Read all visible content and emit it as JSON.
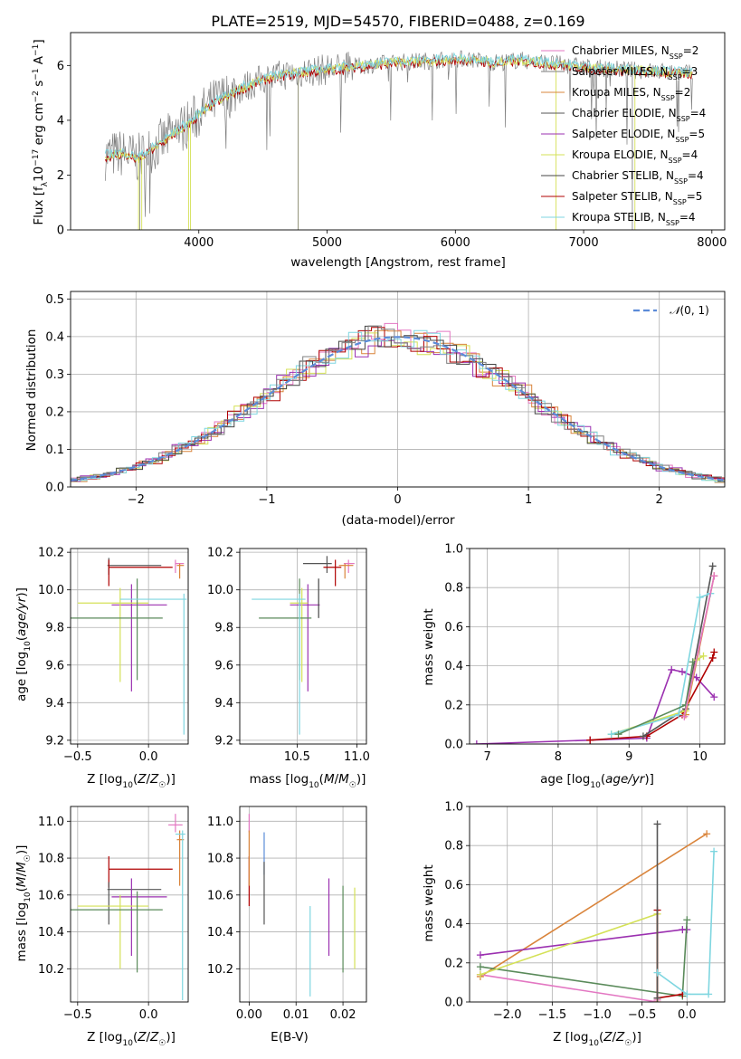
{
  "colors": {
    "Chabrier MILES": "#e377c2",
    "Salpeter MILES": "#7f7f7f",
    "Kroupa MILES": "#d9843b",
    "Chabrier ELODIE": "#555555",
    "Salpeter ELODIE": "#9b30b0",
    "Kroupa ELODIE": "#d4e157",
    "Chabrier STELIB": "#444444",
    "Salpeter STELIB": "#b00000",
    "Kroupa STELIB": "#7fd6e0",
    "green": "#5a8a5a",
    "blue": "#5b8bd8"
  },
  "chart_data": [
    {
      "id": "spectrum",
      "type": "line",
      "title": "PLATE=2519, MJD=54570, FIBERID=0488, z=0.169",
      "xlabel": "wavelength [Angstrom, rest frame]",
      "ylabel": "Flux [f_λ 10^-17 erg cm^-2 s^-1 A^-1]",
      "xlim": [
        3000,
        8100
      ],
      "ylim": [
        0,
        7.2
      ],
      "xticks": [
        4000,
        5000,
        6000,
        7000,
        8000
      ],
      "yticks": [
        0,
        2,
        4,
        6
      ],
      "legend": [
        {
          "label": "Chabrier MILES, N_SSP=2"
        },
        {
          "label": "Salpeter MILES, N_SSP=3"
        },
        {
          "label": "Kroupa MILES, N_SSP=2"
        },
        {
          "label": "Chabrier ELODIE, N_SSP=4"
        },
        {
          "label": "Salpeter ELODIE, N_SSP=5"
        },
        {
          "label": "Kroupa ELODIE, N_SSP=4"
        },
        {
          "label": "Chabrier STELIB, N_SSP=4"
        },
        {
          "label": "Salpeter STELIB, N_SSP=5"
        },
        {
          "label": "Kroupa STELIB, N_SSP=4"
        }
      ],
      "model_curve": {
        "x": [
          3270,
          3400,
          3520,
          3650,
          3800,
          3950,
          4100,
          4300,
          4500,
          4700,
          4900,
          5100,
          5300,
          5500,
          5700,
          5900,
          6100,
          6300,
          6500,
          6700,
          6900,
          7100,
          7300,
          7500,
          7700,
          7850
        ],
        "y": [
          2.7,
          2.8,
          2.6,
          3.0,
          3.5,
          4.0,
          4.6,
          5.1,
          5.5,
          5.7,
          5.8,
          5.9,
          6.0,
          6.1,
          6.15,
          6.2,
          6.25,
          6.1,
          6.2,
          6.1,
          6.0,
          5.9,
          5.85,
          5.8,
          5.75,
          5.7
        ]
      }
    },
    {
      "id": "residuals",
      "type": "line",
      "xlabel": "(data-model)/error",
      "ylabel": "Normed distribution",
      "xlim": [
        -2.5,
        2.5
      ],
      "ylim": [
        0,
        0.52
      ],
      "xticks": [
        -2,
        -1,
        0,
        1,
        2
      ],
      "yticks": [
        0.0,
        0.1,
        0.2,
        0.3,
        0.4,
        0.5
      ],
      "legend": [
        {
          "label": "N(0, 1)"
        }
      ],
      "gaussian": {
        "mean": 0,
        "sigma": 1
      }
    },
    {
      "id": "age-vs-Z",
      "type": "scatter",
      "xlabel": "Z [log10(Z/Z☉)]",
      "ylabel": "age [log10(age/yr)]",
      "xlim": [
        -0.55,
        0.28
      ],
      "ylim": [
        9.18,
        10.22
      ],
      "xticks": [
        -0.5,
        0.0
      ],
      "yticks": [
        9.2,
        9.4,
        9.6,
        9.8,
        10.0,
        10.2
      ],
      "points": [
        {
          "series": "Chabrier MILES",
          "x": 0.19,
          "y": 10.14,
          "xerr": [
            0.0,
            0.06
          ],
          "yerr": [
            0.05,
            0.02
          ]
        },
        {
          "series": "Kroupa MILES",
          "x": 0.22,
          "y": 10.13,
          "xerr": [
            0.02,
            0.03
          ],
          "yerr": [
            0.07,
            0.01
          ]
        },
        {
          "series": "Chabrier ELODIE",
          "x": -0.28,
          "y": 10.13,
          "xerr": [
            0.01,
            0.37
          ],
          "yerr": [
            0.05,
            0.04
          ]
        },
        {
          "series": "Salpeter STELIB",
          "x": -0.28,
          "y": 10.12,
          "xerr": [
            0.0,
            0.45
          ],
          "yerr": [
            0.1,
            0.04
          ]
        },
        {
          "series": "Salpeter ELODIE",
          "x": -0.12,
          "y": 9.92,
          "xerr": [
            0.14,
            0.25
          ],
          "yerr": [
            0.46,
            0.11
          ]
        },
        {
          "series": "Kroupa ELODIE",
          "x": -0.2,
          "y": 9.93,
          "xerr": [
            0.3,
            0.2
          ],
          "yerr": [
            0.42,
            0.08
          ]
        },
        {
          "series": "green",
          "x": -0.08,
          "y": 9.85,
          "xerr": [
            0.47,
            0.18
          ],
          "yerr": [
            0.33,
            0.21
          ]
        },
        {
          "series": "Kroupa STELIB",
          "x": 0.25,
          "y": 9.95,
          "xerr": [
            0.45,
            0.02
          ],
          "yerr": [
            0.72,
            0.03
          ]
        }
      ]
    },
    {
      "id": "age-vs-mass",
      "type": "scatter",
      "xlabel": "mass [log10(M/M☉)]",
      "ylabel": "",
      "xlim": [
        10.02,
        11.08
      ],
      "ylim": [
        9.18,
        10.22
      ],
      "xticks": [
        10.5,
        11.0
      ],
      "yticks": [
        9.2,
        9.4,
        9.6,
        9.8,
        10.0,
        10.2
      ],
      "points": [
        {
          "series": "Chabrier MILES",
          "x": 10.93,
          "y": 10.14,
          "xerr": [
            0.04,
            0.05
          ],
          "yerr": [
            0.05,
            0.02
          ]
        },
        {
          "series": "Kroupa MILES",
          "x": 10.9,
          "y": 10.13,
          "xerr": [
            0.05,
            0.07
          ],
          "yerr": [
            0.07,
            0.01
          ]
        },
        {
          "series": "Chabrier ELODIE",
          "x": 10.75,
          "y": 10.14,
          "xerr": [
            0.2,
            0.04
          ],
          "yerr": [
            0.05,
            0.04
          ]
        },
        {
          "series": "Salpeter STELIB",
          "x": 10.82,
          "y": 10.12,
          "xerr": [
            0.1,
            0.05
          ],
          "yerr": [
            0.1,
            0.04
          ]
        },
        {
          "series": "Salpeter ELODIE",
          "x": 10.59,
          "y": 9.92,
          "xerr": [
            0.15,
            0.1
          ],
          "yerr": [
            0.46,
            0.11
          ]
        },
        {
          "series": "Kroupa ELODIE",
          "x": 10.54,
          "y": 9.93,
          "xerr": [
            0.1,
            0.05
          ],
          "yerr": [
            0.42,
            0.08
          ]
        },
        {
          "series": "green",
          "x": 10.52,
          "y": 9.85,
          "xerr": [
            0.34,
            0.1
          ],
          "yerr": [
            0.33,
            0.21
          ]
        },
        {
          "series": "Kroupa STELIB",
          "x": 10.52,
          "y": 9.95,
          "xerr": [
            0.4,
            0.05
          ],
          "yerr": [
            0.72,
            0.03
          ]
        },
        {
          "series": "Chabrier STELIB",
          "x": 10.68,
          "y": 10.0,
          "xerr": [
            0.0,
            0.0
          ],
          "yerr": [
            0.15,
            0.06
          ]
        }
      ]
    },
    {
      "id": "mass-weight-vs-age",
      "type": "line",
      "xlabel": "age [log10(age/yr)]",
      "ylabel": "mass weight",
      "xlim": [
        6.75,
        10.35
      ],
      "ylim": [
        0,
        1.0
      ],
      "xticks": [
        7,
        8,
        9,
        10
      ],
      "yticks": [
        0.0,
        0.2,
        0.4,
        0.6,
        0.8,
        1.0
      ],
      "series": [
        {
          "color": "Salpeter ELODIE",
          "x": [
            6.85,
            8.45,
            9.25,
            9.6,
            9.75,
            9.95,
            10.2
          ],
          "y": [
            0.0,
            0.02,
            0.03,
            0.38,
            0.37,
            0.34,
            0.24
          ]
        },
        {
          "color": "Salpeter STELIB",
          "x": [
            8.45,
            9.25,
            9.75,
            10.18,
            10.2
          ],
          "y": [
            0.02,
            0.04,
            0.15,
            0.44,
            0.47
          ]
        },
        {
          "color": "Chabrier ELODIE",
          "x": [
            9.2,
            9.8,
            10.18
          ],
          "y": [
            0.04,
            0.18,
            0.91
          ]
        },
        {
          "color": "Kroupa MILES",
          "x": [
            9.8,
            10.2
          ],
          "y": [
            0.15,
            0.86
          ]
        },
        {
          "color": "Kroupa ELODIE",
          "x": [
            8.75,
            9.8,
            9.95,
            10.05
          ],
          "y": [
            0.05,
            0.17,
            0.43,
            0.45
          ]
        },
        {
          "color": "Kroupa STELIB",
          "x": [
            8.75,
            9.7,
            10.0,
            10.15
          ],
          "y": [
            0.05,
            0.15,
            0.75,
            0.77
          ]
        },
        {
          "color": "green",
          "x": [
            8.85,
            9.8,
            9.9
          ],
          "y": [
            0.05,
            0.2,
            0.42
          ]
        },
        {
          "color": "Chabrier MILES",
          "x": [
            9.78,
            10.2
          ],
          "y": [
            0.14,
            0.86
          ]
        }
      ]
    },
    {
      "id": "mass-vs-Z",
      "type": "scatter",
      "xlabel": "Z [log10(Z/Z☉)]",
      "ylabel": "mass [log10(M/M☉)]",
      "xlim": [
        -0.55,
        0.28
      ],
      "ylim": [
        10.02,
        11.08
      ],
      "xticks": [
        -0.5,
        0.0
      ],
      "yticks": [
        10.2,
        10.4,
        10.6,
        10.8,
        11.0
      ],
      "points": [
        {
          "series": "Chabrier MILES",
          "x": 0.19,
          "y": 10.98,
          "xerr": [
            0.05,
            0.05
          ],
          "yerr": [
            0.04,
            0.06
          ]
        },
        {
          "series": "Kroupa MILES",
          "x": 0.22,
          "y": 10.9,
          "xerr": [
            0.02,
            0.03
          ],
          "yerr": [
            0.25,
            0.05
          ]
        },
        {
          "series": "Kroupa STELIB",
          "x": 0.24,
          "y": 10.93,
          "xerr": [
            0.05,
            0.02
          ],
          "yerr": [
            0.9,
            0.02
          ]
        },
        {
          "series": "Salpeter STELIB",
          "x": -0.28,
          "y": 10.74,
          "xerr": [
            0.0,
            0.45
          ],
          "yerr": [
            0.1,
            0.07
          ]
        },
        {
          "series": "Chabrier ELODIE",
          "x": -0.28,
          "y": 10.63,
          "xerr": [
            0.01,
            0.37
          ],
          "yerr": [
            0.19,
            0.04
          ]
        },
        {
          "series": "Salpeter ELODIE",
          "x": -0.12,
          "y": 10.59,
          "xerr": [
            0.14,
            0.25
          ],
          "yerr": [
            0.32,
            0.1
          ]
        },
        {
          "series": "Kroupa ELODIE",
          "x": -0.2,
          "y": 10.54,
          "xerr": [
            0.3,
            0.2
          ],
          "yerr": [
            0.34,
            0.06
          ]
        },
        {
          "series": "green",
          "x": -0.08,
          "y": 10.52,
          "xerr": [
            0.47,
            0.18
          ],
          "yerr": [
            0.34,
            0.1
          ]
        }
      ]
    },
    {
      "id": "mass-vs-EBV",
      "type": "scatter",
      "xlabel": "E(B-V)",
      "ylabel": "",
      "xlim": [
        -0.002,
        0.025
      ],
      "ylim": [
        10.02,
        11.08
      ],
      "xticks": [
        0.0,
        0.01,
        0.02
      ],
      "yticks": [
        10.2,
        10.4,
        10.6,
        10.8,
        11.0
      ],
      "points": [
        {
          "series": "Chabrier MILES",
          "x": 0.0,
          "y": 10.98,
          "xerr": [
            0,
            0
          ],
          "yerr": [
            0.04,
            0.06
          ]
        },
        {
          "series": "Salpeter STELIB",
          "x": 0.0,
          "y": 10.74,
          "xerr": [
            0,
            0
          ],
          "yerr": [
            0.2,
            0.07
          ]
        },
        {
          "series": "Kroupa MILES",
          "x": 0.0,
          "y": 10.9,
          "xerr": [
            0,
            0
          ],
          "yerr": [
            0.25,
            0.05
          ]
        },
        {
          "series": "blue",
          "x": 0.0032,
          "y": 10.86,
          "xerr": [
            0,
            0
          ],
          "yerr": [
            0.15,
            0.08
          ]
        },
        {
          "series": "Chabrier ELODIE",
          "x": 0.0032,
          "y": 10.63,
          "xerr": [
            0,
            0
          ],
          "yerr": [
            0.19,
            0.15
          ]
        },
        {
          "series": "Kroupa STELIB",
          "x": 0.013,
          "y": 10.3,
          "xerr": [
            0,
            0
          ],
          "yerr": [
            0.25,
            0.24
          ]
        },
        {
          "series": "Salpeter ELODIE",
          "x": 0.017,
          "y": 10.59,
          "xerr": [
            0,
            0
          ],
          "yerr": [
            0.32,
            0.1
          ]
        },
        {
          "series": "green",
          "x": 0.02,
          "y": 10.45,
          "xerr": [
            0,
            0
          ],
          "yerr": [
            0.27,
            0.2
          ]
        },
        {
          "series": "Kroupa ELODIE",
          "x": 0.0225,
          "y": 10.44,
          "xerr": [
            0,
            0
          ],
          "yerr": [
            0.24,
            0.2
          ]
        }
      ]
    },
    {
      "id": "mass-weight-vs-Z",
      "type": "line",
      "xlabel": "Z [log10(Z/Z☉)]",
      "ylabel": "mass weight",
      "xlim": [
        -2.42,
        0.42
      ],
      "ylim": [
        0,
        1.0
      ],
      "xticks": [
        -2.0,
        -1.5,
        -1.0,
        -0.5,
        0.0
      ],
      "yticks": [
        0.0,
        0.2,
        0.4,
        0.6,
        0.8,
        1.0
      ],
      "series": [
        {
          "color": "Kroupa MILES",
          "x": [
            -2.3,
            0.22
          ],
          "y": [
            0.13,
            0.86
          ]
        },
        {
          "color": "Chabrier MILES",
          "x": [
            -2.3,
            -0.33,
            -0.33
          ],
          "y": [
            0.14,
            0.0,
            0.01
          ]
        },
        {
          "color": "Salpeter ELODIE",
          "x": [
            -2.3,
            -0.05,
            0.0
          ],
          "y": [
            0.24,
            0.37,
            0.37
          ]
        },
        {
          "color": "green",
          "x": [
            -2.3,
            -0.05,
            0.0
          ],
          "y": [
            0.18,
            0.03,
            0.42
          ]
        },
        {
          "color": "Kroupa ELODIE",
          "x": [
            -2.3,
            -0.33,
            -0.33
          ],
          "y": [
            0.14,
            0.45,
            0.0
          ]
        },
        {
          "color": "Salpeter STELIB",
          "x": [
            -0.33,
            -0.33,
            -0.05
          ],
          "y": [
            0.47,
            0.02,
            0.04
          ]
        },
        {
          "color": "Chabrier ELODIE",
          "x": [
            -0.33,
            -0.33
          ],
          "y": [
            0.91,
            0.02
          ]
        },
        {
          "color": "Kroupa STELIB",
          "x": [
            -0.33,
            0.0,
            0.24,
            0.3
          ],
          "y": [
            0.15,
            0.04,
            0.04,
            0.77
          ]
        }
      ]
    }
  ]
}
